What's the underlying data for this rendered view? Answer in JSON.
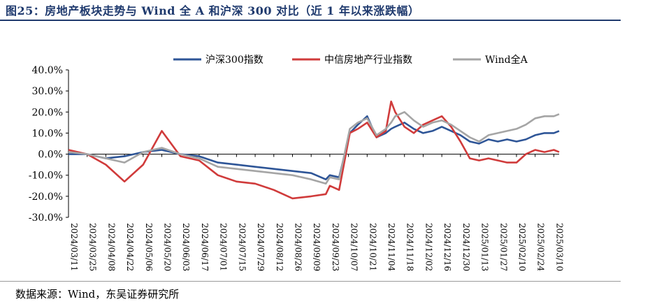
{
  "header": {
    "title": "图25：房地产板块走势与 Wind 全 A 和沪深 300 对比（近 1 年以来涨跌幅）"
  },
  "footer": {
    "source": "数据来源：Wind，东吴证券研究所"
  },
  "colors": {
    "hs300": "#2e5597",
    "realestate": "#d03b3b",
    "winda": "#a5a5a5",
    "title": "#1f3a6e"
  },
  "chart_data": {
    "type": "line",
    "title": "",
    "xlabel": "",
    "ylabel": "",
    "ylim": [
      -30,
      40
    ],
    "y_ticks": [
      "40.0%",
      "30.0%",
      "20.0%",
      "10.0%",
      "0.0%",
      "-10.0%",
      "-20.0%",
      "-30.0%"
    ],
    "y_tick_values": [
      40,
      30,
      20,
      10,
      0,
      -10,
      -20,
      -30
    ],
    "x_tick_labels": [
      "2024/03/11",
      "2024/03/25",
      "2024/04/08",
      "2024/04/22",
      "2024/05/06",
      "2024/05/20",
      "2024/06/03",
      "2024/06/17",
      "2024/07/01",
      "2024/07/15",
      "2024/07/29",
      "2024/08/12",
      "2024/08/26",
      "2024/09/09",
      "2024/09/23",
      "2024/10/07",
      "2024/10/21",
      "2024/11/04",
      "2024/11/18",
      "2024/12/02",
      "2024/12/16",
      "2024/12/30",
      "2025/01/13",
      "2025/01/27",
      "2025/02/10",
      "2025/02/24",
      "2025/03/10"
    ],
    "legend_position": "top",
    "grid": false,
    "x": [
      "2024/03/11",
      "2024/03/25",
      "2024/04/08",
      "2024/04/22",
      "2024/05/06",
      "2024/05/20",
      "2024/06/03",
      "2024/06/17",
      "2024/07/01",
      "2024/07/15",
      "2024/07/29",
      "2024/08/12",
      "2024/08/26",
      "2024/09/09",
      "2024/09/20",
      "2024/09/23",
      "2024/09/30",
      "2024/10/08",
      "2024/10/14",
      "2024/10/21",
      "2024/10/28",
      "2024/11/04",
      "2024/11/08",
      "2024/11/11",
      "2024/11/18",
      "2024/11/25",
      "2024/12/02",
      "2024/12/09",
      "2024/12/16",
      "2024/12/23",
      "2024/12/30",
      "2025/01/06",
      "2025/01/13",
      "2025/01/20",
      "2025/01/27",
      "2025/02/03",
      "2025/02/10",
      "2025/02/17",
      "2025/02/24",
      "2025/03/03",
      "2025/03/10",
      "2025/03/14"
    ],
    "series": [
      {
        "name": "沪深300指数",
        "color": "#2e5597",
        "values": [
          0,
          0,
          -2,
          -1,
          1,
          2,
          0,
          -1,
          -4,
          -5,
          -6,
          -7,
          -8,
          -9,
          -12,
          -10,
          -11,
          10,
          14,
          18,
          8,
          10,
          12,
          13,
          15,
          12,
          10,
          11,
          13,
          11,
          9,
          6,
          5,
          7,
          6,
          7,
          6,
          7,
          9,
          10,
          10,
          11
        ]
      },
      {
        "name": "中信房地产行业指数",
        "color": "#d03b3b",
        "values": [
          2,
          0,
          -5,
          -13,
          -5,
          11,
          -1,
          -3,
          -10,
          -13,
          -14,
          -17,
          -21,
          -20,
          -19,
          -15,
          -17,
          10,
          12,
          15,
          8,
          11,
          25,
          20,
          13,
          10,
          14,
          16,
          18,
          13,
          6,
          -2,
          -3,
          -2,
          -3,
          -4,
          -4,
          0,
          2,
          1,
          2,
          1
        ]
      },
      {
        "name": "Wind全A",
        "color": "#a5a5a5",
        "values": [
          1,
          0,
          -2,
          -4,
          1,
          3,
          0,
          -2,
          -6,
          -7,
          -8,
          -9,
          -10,
          -12,
          -14,
          -11,
          -12,
          12,
          15,
          17,
          9,
          12,
          15,
          18,
          20,
          16,
          13,
          15,
          16,
          14,
          11,
          8,
          6,
          9,
          10,
          11,
          12,
          14,
          17,
          18,
          18,
          19
        ]
      }
    ]
  }
}
